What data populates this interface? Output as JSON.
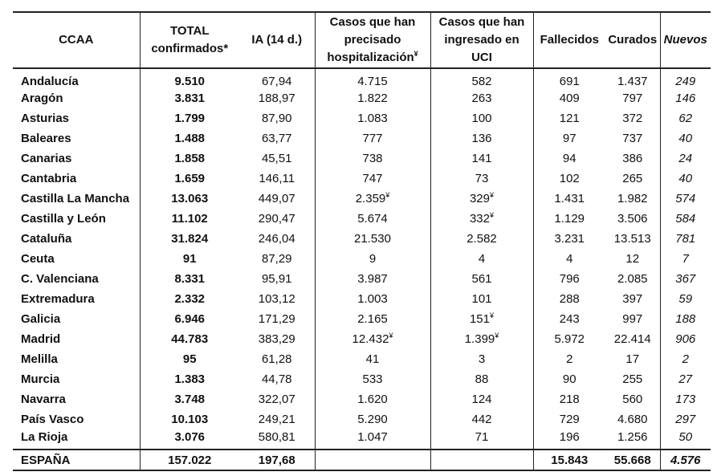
{
  "headers": {
    "ccaa": "CCAA",
    "total_l1": "TOTAL",
    "total_l2": "confirmados*",
    "ia": "IA (14 d.)",
    "hosp_l1": "Casos que han",
    "hosp_l2": "precisado",
    "hosp_l3": "hospitalización",
    "uci_l1": "Casos que han",
    "uci_l2": "ingresado en",
    "uci_l3": "UCI",
    "fallecidos": "Fallecidos",
    "curados": "Curados",
    "nuevos": "Nuevos",
    "mark": "¥"
  },
  "rows": [
    {
      "ccaa": "Andalucía",
      "total": "9.510",
      "ia": "67,94",
      "hosp": "4.715",
      "hosp_mark": "",
      "uci": "582",
      "uci_mark": "",
      "fallecidos": "691",
      "curados": "1.437",
      "nuevos": "249"
    },
    {
      "ccaa": "Aragón",
      "total": "3.831",
      "ia": "188,97",
      "hosp": "1.822",
      "hosp_mark": "",
      "uci": "263",
      "uci_mark": "",
      "fallecidos": "409",
      "curados": "797",
      "nuevos": "146"
    },
    {
      "ccaa": "Asturias",
      "total": "1.799",
      "ia": "87,90",
      "hosp": "1.083",
      "hosp_mark": "",
      "uci": "100",
      "uci_mark": "",
      "fallecidos": "121",
      "curados": "372",
      "nuevos": "62"
    },
    {
      "ccaa": "Baleares",
      "total": "1.488",
      "ia": "63,77",
      "hosp": "777",
      "hosp_mark": "",
      "uci": "136",
      "uci_mark": "",
      "fallecidos": "97",
      "curados": "737",
      "nuevos": "40"
    },
    {
      "ccaa": "Canarias",
      "total": "1.858",
      "ia": "45,51",
      "hosp": "738",
      "hosp_mark": "",
      "uci": "141",
      "uci_mark": "",
      "fallecidos": "94",
      "curados": "386",
      "nuevos": "24"
    },
    {
      "ccaa": "Cantabria",
      "total": "1.659",
      "ia": "146,11",
      "hosp": "747",
      "hosp_mark": "",
      "uci": "73",
      "uci_mark": "",
      "fallecidos": "102",
      "curados": "265",
      "nuevos": "40"
    },
    {
      "ccaa": "Castilla La Mancha",
      "total": "13.063",
      "ia": "449,07",
      "hosp": "2.359",
      "hosp_mark": "¥",
      "uci": "329",
      "uci_mark": "¥",
      "fallecidos": "1.431",
      "curados": "1.982",
      "nuevos": "574"
    },
    {
      "ccaa": "Castilla y León",
      "total": "11.102",
      "ia": "290,47",
      "hosp": "5.674",
      "hosp_mark": "",
      "uci": "332",
      "uci_mark": "¥",
      "fallecidos": "1.129",
      "curados": "3.506",
      "nuevos": "584"
    },
    {
      "ccaa": "Cataluña",
      "total": "31.824",
      "ia": "246,04",
      "hosp": "21.530",
      "hosp_mark": "",
      "uci": "2.582",
      "uci_mark": "",
      "fallecidos": "3.231",
      "curados": "13.513",
      "nuevos": "781"
    },
    {
      "ccaa": "Ceuta",
      "total": "91",
      "ia": "87,29",
      "hosp": "9",
      "hosp_mark": "",
      "uci": "4",
      "uci_mark": "",
      "fallecidos": "4",
      "curados": "12",
      "nuevos": "7"
    },
    {
      "ccaa": "C. Valenciana",
      "total": "8.331",
      "ia": "95,91",
      "hosp": "3.987",
      "hosp_mark": "",
      "uci": "561",
      "uci_mark": "",
      "fallecidos": "796",
      "curados": "2.085",
      "nuevos": "367"
    },
    {
      "ccaa": "Extremadura",
      "total": "2.332",
      "ia": "103,12",
      "hosp": "1.003",
      "hosp_mark": "",
      "uci": "101",
      "uci_mark": "",
      "fallecidos": "288",
      "curados": "397",
      "nuevos": "59"
    },
    {
      "ccaa": "Galicia",
      "total": "6.946",
      "ia": "171,29",
      "hosp": "2.165",
      "hosp_mark": "",
      "uci": "151",
      "uci_mark": "¥",
      "fallecidos": "243",
      "curados": "997",
      "nuevos": "188"
    },
    {
      "ccaa": "Madrid",
      "total": "44.783",
      "ia": "383,29",
      "hosp": "12.432",
      "hosp_mark": "¥",
      "uci": "1.399",
      "uci_mark": "¥",
      "fallecidos": "5.972",
      "curados": "22.414",
      "nuevos": "906"
    },
    {
      "ccaa": "Melilla",
      "total": "95",
      "ia": "61,28",
      "hosp": "41",
      "hosp_mark": "",
      "uci": "3",
      "uci_mark": "",
      "fallecidos": "2",
      "curados": "17",
      "nuevos": "2"
    },
    {
      "ccaa": "Murcia",
      "total": "1.383",
      "ia": "44,78",
      "hosp": "533",
      "hosp_mark": "",
      "uci": "88",
      "uci_mark": "",
      "fallecidos": "90",
      "curados": "255",
      "nuevos": "27"
    },
    {
      "ccaa": "Navarra",
      "total": "3.748",
      "ia": "322,07",
      "hosp": "1.620",
      "hosp_mark": "",
      "uci": "124",
      "uci_mark": "",
      "fallecidos": "218",
      "curados": "560",
      "nuevos": "173"
    },
    {
      "ccaa": "País Vasco",
      "total": "10.103",
      "ia": "249,21",
      "hosp": "5.290",
      "hosp_mark": "",
      "uci": "442",
      "uci_mark": "",
      "fallecidos": "729",
      "curados": "4.680",
      "nuevos": "297"
    },
    {
      "ccaa": "La Rioja",
      "total": "3.076",
      "ia": "580,81",
      "hosp": "1.047",
      "hosp_mark": "",
      "uci": "71",
      "uci_mark": "",
      "fallecidos": "196",
      "curados": "1.256",
      "nuevos": "50"
    }
  ],
  "total": {
    "ccaa": "ESPAÑA",
    "total": "157.022",
    "ia": "197,68",
    "hosp": "",
    "uci": "",
    "fallecidos": "15.843",
    "curados": "55.668",
    "nuevos": "4.576"
  }
}
